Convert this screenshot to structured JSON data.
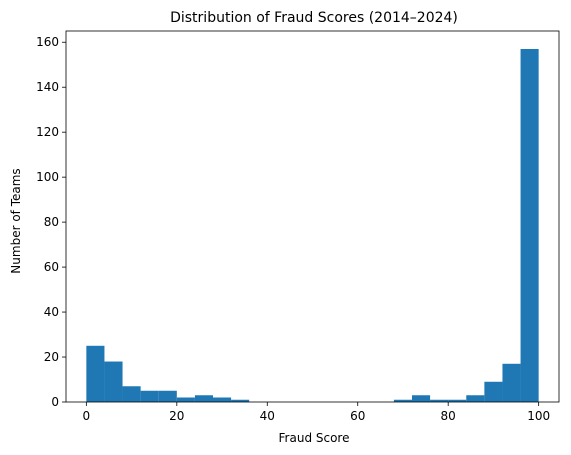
{
  "chart_data": {
    "type": "bar",
    "title": "Distribution of Fraud Scores (2014–2024)",
    "xlabel": "Fraud Score",
    "ylabel": "Number of Teams",
    "xlim": [
      -4.5,
      104.5
    ],
    "ylim": [
      0,
      165
    ],
    "grid": false,
    "bar_color": "#1f77b4",
    "x_ticks": [
      0,
      20,
      40,
      60,
      80,
      100
    ],
    "y_ticks": [
      0,
      20,
      40,
      60,
      80,
      100,
      120,
      140,
      160
    ],
    "bins": [
      {
        "x0": 0,
        "x1": 4,
        "count": 25
      },
      {
        "x0": 4,
        "x1": 8,
        "count": 18
      },
      {
        "x0": 8,
        "x1": 12,
        "count": 7
      },
      {
        "x0": 12,
        "x1": 16,
        "count": 5
      },
      {
        "x0": 16,
        "x1": 20,
        "count": 5
      },
      {
        "x0": 20,
        "x1": 24,
        "count": 2
      },
      {
        "x0": 24,
        "x1": 28,
        "count": 3
      },
      {
        "x0": 28,
        "x1": 32,
        "count": 2
      },
      {
        "x0": 32,
        "x1": 36,
        "count": 1
      },
      {
        "x0": 36,
        "x1": 40,
        "count": 0
      },
      {
        "x0": 40,
        "x1": 44,
        "count": 0
      },
      {
        "x0": 44,
        "x1": 48,
        "count": 0
      },
      {
        "x0": 48,
        "x1": 52,
        "count": 0
      },
      {
        "x0": 52,
        "x1": 56,
        "count": 0
      },
      {
        "x0": 56,
        "x1": 60,
        "count": 0
      },
      {
        "x0": 60,
        "x1": 64,
        "count": 0
      },
      {
        "x0": 64,
        "x1": 68,
        "count": 0
      },
      {
        "x0": 68,
        "x1": 72,
        "count": 1
      },
      {
        "x0": 72,
        "x1": 76,
        "count": 3
      },
      {
        "x0": 76,
        "x1": 80,
        "count": 1
      },
      {
        "x0": 80,
        "x1": 84,
        "count": 1
      },
      {
        "x0": 84,
        "x1": 88,
        "count": 3
      },
      {
        "x0": 88,
        "x1": 92,
        "count": 9
      },
      {
        "x0": 92,
        "x1": 96,
        "count": 17
      },
      {
        "x0": 96,
        "x1": 100,
        "count": 157
      }
    ]
  }
}
